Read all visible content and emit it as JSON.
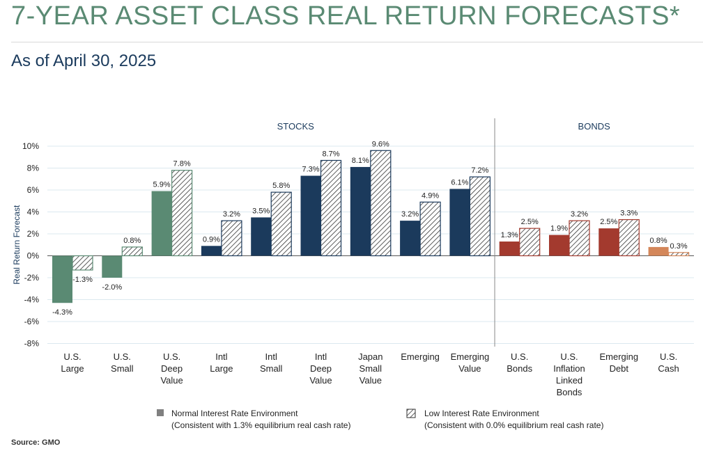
{
  "title": "7-YEAR ASSET CLASS REAL RETURN FORECASTS*",
  "subtitle": "As of April 30, 2025",
  "source": "Source: GMO",
  "colors": {
    "title": "#5a8a73",
    "subtitle": "#1a3a5c",
    "us_stocks": "#5a8a73",
    "intl_stocks": "#1b3a5c",
    "bonds": "#a33a2e",
    "cash": "#d4875a",
    "legend_normal": "#808080"
  },
  "chart_data": {
    "type": "bar",
    "ylabel": "Real Return Forecast",
    "ylim": [
      -8,
      10
    ],
    "yticks": [
      "10%",
      "8%",
      "6%",
      "4%",
      "2%",
      "0%",
      "-2%",
      "-4%",
      "-6%",
      "-8%"
    ],
    "grid": true,
    "groups": [
      {
        "label": "STOCKS"
      },
      {
        "label": "BONDS"
      }
    ],
    "categories": [
      {
        "name": "U.S. Large",
        "lines": [
          "U.S.",
          "Large"
        ],
        "color": "us_stocks"
      },
      {
        "name": "U.S. Small",
        "lines": [
          "U.S.",
          "Small"
        ],
        "color": "us_stocks"
      },
      {
        "name": "U.S. Deep Value",
        "lines": [
          "U.S.",
          "Deep",
          "Value"
        ],
        "color": "us_stocks"
      },
      {
        "name": "Intl Large",
        "lines": [
          "Intl",
          "Large"
        ],
        "color": "intl_stocks"
      },
      {
        "name": "Intl Small",
        "lines": [
          "Intl",
          "Small"
        ],
        "color": "intl_stocks"
      },
      {
        "name": "Intl Deep Value",
        "lines": [
          "Intl",
          "Deep",
          "Value"
        ],
        "color": "intl_stocks"
      },
      {
        "name": "Japan Small Value",
        "lines": [
          "Japan",
          "Small",
          "Value"
        ],
        "color": "intl_stocks"
      },
      {
        "name": "Emerging",
        "lines": [
          "Emerging"
        ],
        "color": "intl_stocks"
      },
      {
        "name": "Emerging Value",
        "lines": [
          "Emerging",
          "Value"
        ],
        "color": "intl_stocks"
      },
      {
        "name": "U.S. Bonds",
        "lines": [
          "U.S.",
          "Bonds"
        ],
        "color": "bonds"
      },
      {
        "name": "U.S. Inflation Linked Bonds",
        "lines": [
          "U.S.",
          "Inflation",
          "Linked",
          "Bonds"
        ],
        "color": "bonds"
      },
      {
        "name": "Emerging Debt",
        "lines": [
          "Emerging",
          "Debt"
        ],
        "color": "bonds"
      },
      {
        "name": "U.S. Cash",
        "lines": [
          "U.S.",
          "Cash"
        ],
        "color": "cash"
      }
    ],
    "series": [
      {
        "name": "Normal Interest Rate Environment",
        "note": "(Consistent with 1.3% equilibrium real cash rate)",
        "values": [
          -4.3,
          -2.0,
          5.9,
          0.9,
          3.5,
          7.3,
          8.1,
          3.2,
          6.1,
          1.3,
          1.9,
          2.5,
          0.8
        ],
        "labels": [
          "-4.3%",
          "-2.0%",
          "5.9%",
          "0.9%",
          "3.5%",
          "7.3%",
          "8.1%",
          "3.2%",
          "6.1%",
          "1.3%",
          "1.9%",
          "2.5%",
          "0.8%"
        ]
      },
      {
        "name": "Low Interest Rate Environment",
        "note": "(Consistent with 0.0% equilibrium real cash rate)",
        "values": [
          -1.3,
          0.8,
          7.8,
          3.2,
          5.8,
          8.7,
          9.6,
          4.9,
          7.2,
          2.5,
          3.2,
          3.3,
          0.3
        ],
        "labels": [
          "-1.3%",
          "0.8%",
          "7.8%",
          "3.2%",
          "5.8%",
          "8.7%",
          "9.6%",
          "4.9%",
          "7.2%",
          "2.5%",
          "3.2%",
          "3.3%",
          "0.3%"
        ]
      }
    ]
  }
}
